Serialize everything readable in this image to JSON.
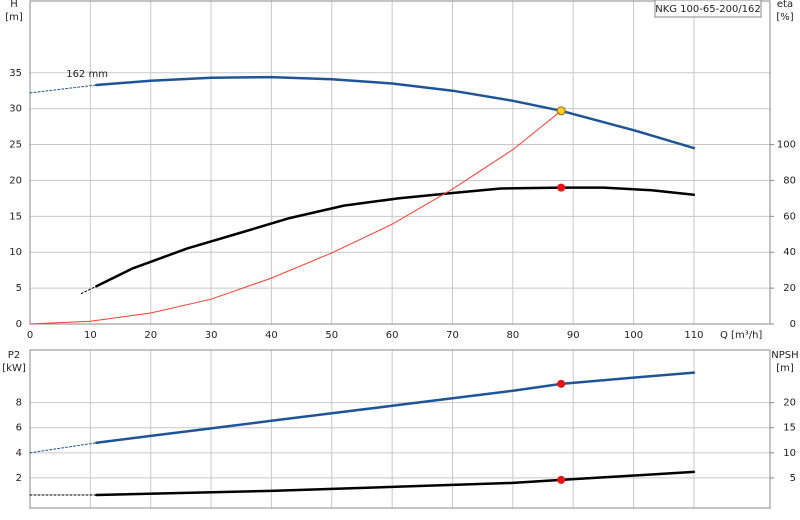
{
  "chart_data": [
    {
      "type": "line",
      "title": "NKG 100-65-200/162",
      "y_label": "H",
      "y_unit": "[m]",
      "y2_label": "eta",
      "y2_unit": "[%]",
      "x_label": "Q [m³/h]",
      "xlim": [
        0,
        122.6
      ],
      "xticks": [
        0,
        10,
        20,
        30,
        40,
        50,
        60,
        70,
        80,
        90,
        100,
        110
      ],
      "ylim": [
        0,
        45
      ],
      "yticks": [
        0,
        5,
        10,
        15,
        20,
        25,
        30,
        35
      ],
      "y2lim": [
        0,
        180
      ],
      "y2ticks": [
        0,
        20,
        40,
        60,
        80,
        100
      ],
      "grid": true,
      "annotations": [
        {
          "text": "162 mm",
          "x": 6,
          "y": 34.8
        }
      ],
      "series": [
        {
          "color": "#1f5597",
          "style": "dashed",
          "x": [
            0,
            11
          ],
          "values": [
            32.2,
            33.3
          ]
        },
        {
          "color": "#1f5597",
          "style": "solid",
          "x": [
            11,
            20,
            30,
            40,
            50,
            60,
            70,
            80,
            88,
            100,
            110
          ],
          "values": [
            33.3,
            33.9,
            34.3,
            34.4,
            34.1,
            33.5,
            32.5,
            31.1,
            29.7,
            27,
            24.5
          ]
        },
        {
          "color": "#000000",
          "style": "dashed",
          "axis": "y2",
          "x": [
            8.5,
            11
          ],
          "values": [
            17,
            21
          ]
        },
        {
          "color": "#000000",
          "style": "solid",
          "axis": "y2",
          "x": [
            11,
            17,
            26,
            35,
            43,
            52,
            61,
            70,
            78,
            88,
            95,
            103,
            110
          ],
          "values": [
            21,
            31,
            42,
            51,
            59,
            66,
            70,
            73,
            75.5,
            76,
            76,
            74.5,
            72
          ]
        },
        {
          "color": "#ff3b2f",
          "style": "thin",
          "x": [
            0,
            10,
            20,
            30,
            40,
            50,
            60,
            70,
            80,
            88
          ],
          "values": [
            0,
            0.38,
            1.53,
            3.45,
            6.4,
            9.9,
            13.9,
            18.8,
            24.3,
            29.7
          ]
        }
      ],
      "points": [
        {
          "x": 88,
          "y": 29.7,
          "color": "#ffd21f"
        },
        {
          "x": 88,
          "y": 76,
          "axis": "y2",
          "color": "#ee1111"
        }
      ]
    },
    {
      "type": "line",
      "y_label": "P2",
      "y_unit": "[kW]",
      "y2_label": "NPSH",
      "y2_unit": "[m]",
      "xlim": [
        0,
        122.6
      ],
      "ylim": [
        -0.4,
        12.2
      ],
      "yticks": [
        2,
        4,
        6,
        8
      ],
      "y2lim": [
        -1,
        30.5
      ],
      "y2ticks": [
        5,
        10,
        15,
        20
      ],
      "grid": true,
      "series": [
        {
          "color": "#1f5597",
          "style": "dashed",
          "x": [
            0,
            11
          ],
          "values": [
            4.0,
            4.8
          ]
        },
        {
          "color": "#1f5597",
          "style": "solid",
          "x": [
            11,
            20,
            30,
            40,
            50,
            60,
            70,
            80,
            88,
            100,
            110
          ],
          "values": [
            4.8,
            5.35,
            5.95,
            6.55,
            7.15,
            7.75,
            8.35,
            8.95,
            9.5,
            10.0,
            10.4
          ]
        },
        {
          "color": "#000000",
          "style": "dashed",
          "axis": "y2",
          "x": [
            0,
            11
          ],
          "values": [
            1.6,
            1.6
          ]
        },
        {
          "color": "#000000",
          "style": "solid",
          "axis": "y2",
          "x": [
            11,
            40,
            60,
            80,
            88,
            110
          ],
          "values": [
            1.6,
            2.4,
            3.2,
            4.0,
            4.6,
            6.2
          ]
        }
      ],
      "points": [
        {
          "x": 88,
          "y": 9.5,
          "color": "#ee1111"
        },
        {
          "x": 88,
          "y": 4.6,
          "axis": "y2",
          "color": "#ee1111"
        }
      ]
    }
  ]
}
